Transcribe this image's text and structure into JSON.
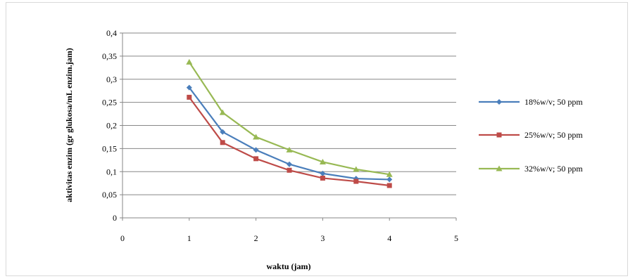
{
  "chart_data": {
    "type": "line",
    "title": "",
    "xlabel": "waktu (jam)",
    "ylabel": "aktivitas enzim (gr glukosa/mL enzim.jam)",
    "xlim": [
      0,
      5
    ],
    "ylim": [
      0,
      0.4
    ],
    "x_ticks": [
      "0",
      "1",
      "2",
      "3",
      "4",
      "5"
    ],
    "y_ticks": [
      "0",
      "0,05",
      "0,1",
      "0,15",
      "0,2",
      "0,25",
      "0,3",
      "0,35",
      "0,4"
    ],
    "grid": "horizontal",
    "legend_position": "right",
    "x": [
      1,
      1.5,
      2,
      2.5,
      3,
      3.5,
      4
    ],
    "series": [
      {
        "name": "18%w/v; 50 ppm",
        "color": "#4a7ebb",
        "marker": "diamond",
        "values": [
          0.282,
          0.186,
          0.147,
          0.116,
          0.096,
          0.085,
          0.083
        ]
      },
      {
        "name": "25%w/v; 50 ppm",
        "color": "#be4b48",
        "marker": "square",
        "values": [
          0.261,
          0.163,
          0.128,
          0.103,
          0.086,
          0.079,
          0.07
        ]
      },
      {
        "name": "32%w/v; 50 ppm",
        "color": "#98b954",
        "marker": "triangle",
        "values": [
          0.337,
          0.228,
          0.175,
          0.147,
          0.121,
          0.105,
          0.094
        ]
      }
    ]
  }
}
